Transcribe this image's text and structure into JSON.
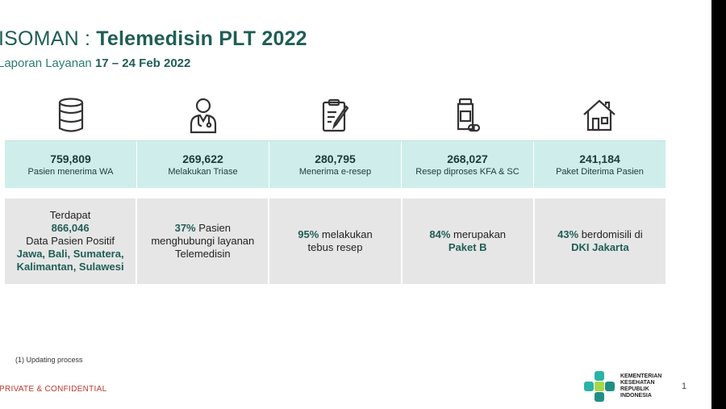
{
  "header": {
    "title_part1": "ISOMAN : ",
    "title_part2": "Telemedisin PLT 2022",
    "subtitle_part1": "Laporan Layanan ",
    "subtitle_part2": "17 – 24 Feb  2022"
  },
  "icons": [
    "database-icon",
    "doctor-icon",
    "prescription-clipboard-icon",
    "medicine-bottle-icon",
    "house-icon"
  ],
  "stats": [
    {
      "value": "759,809",
      "label": "Pasien menerima WA"
    },
    {
      "value": "269,622",
      "label": "Melakukan Triase"
    },
    {
      "value": "280,795",
      "label": "Menerima e-resep"
    },
    {
      "value": "268,027",
      "label": "Resep diproses KFA & SC"
    },
    {
      "value": "241,184",
      "label": "Paket Diterima Pasien"
    }
  ],
  "details": {
    "d1": {
      "l1": "Terdapat",
      "l2": "866,046",
      "l3": "Data Pasien Positif",
      "l4": "Jawa, Bali, Sumatera,",
      "l5": "Kalimantan, Sulawesi"
    },
    "d2": {
      "pct": "37%",
      "l1": " Pasien",
      "l2": "menghubungi layanan",
      "l3": "Telemedisin"
    },
    "d3": {
      "pct": "95%",
      "l1": " melakukan",
      "l2": "tebus resep"
    },
    "d4": {
      "pct": "84%",
      "l1": " merupakan",
      "l2": "Paket B"
    },
    "d5": {
      "pct": "43%",
      "l1": " berdomisili di",
      "l2": "DKI Jakarta"
    }
  },
  "footnote": "(1) Updating process",
  "confidential": "PRIVATE & CONFIDENTIAL",
  "logo": {
    "l1": "KEMENTERIAN",
    "l2": "KESEHATAN",
    "l3": "REPUBLIK",
    "l4": "INDONESIA"
  },
  "page_number": "1",
  "colors": {
    "accent": "#1f5e55",
    "stat_bg": "#cfeeeb",
    "detail_bg": "#e6e6e6",
    "confidential": "#c0392b"
  }
}
